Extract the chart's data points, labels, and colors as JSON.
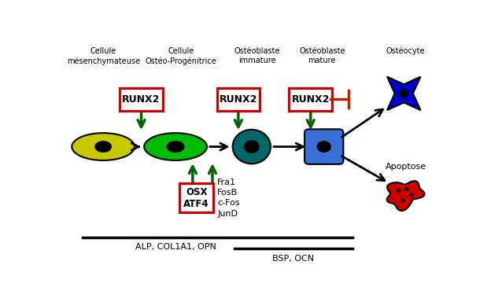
{
  "bg_color": "#ffffff",
  "figsize": [
    6.24,
    3.79
  ],
  "dpi": 100,
  "cell_colors": {
    "mesenchymal": "#c8c800",
    "osteoprogenitor": "#00bb00",
    "immature": "#006868",
    "mature": "#3a6fd8",
    "osteocyte": "#0000cc",
    "apoptose": "#cc0000"
  },
  "arrow_color": "#000000",
  "green_arrow_color": "#006400",
  "red_inhibit_color": "#bb2200",
  "runx2_box_color": "#cc0000",
  "osx_box_color": "#cc0000",
  "labels": {
    "mesenchymal_l1": "Cellule",
    "mesenchymal_l2": "mésenchymateuse",
    "osteoprogenitor_l1": "Cellule",
    "osteoprogenitor_l2": "Ostéo-Progénitrice",
    "immature_l1": "Ostéoblaste",
    "immature_l2": "immature",
    "mature_l1": "Ostéoblaste",
    "mature_l2": "mature",
    "osteocyte": "Ostéocyte",
    "apoptose": "Apoptose",
    "runx2": "RUNX2",
    "osx_atf4": "OSX\nATF4",
    "fra1_etc": "Fra1\nFosB\nc-Fos\nJunD",
    "alp": "ALP, COL1A1, OPN",
    "bsp": "BSP, OCN"
  },
  "xlim": [
    0,
    10
  ],
  "ylim": [
    0,
    6
  ]
}
